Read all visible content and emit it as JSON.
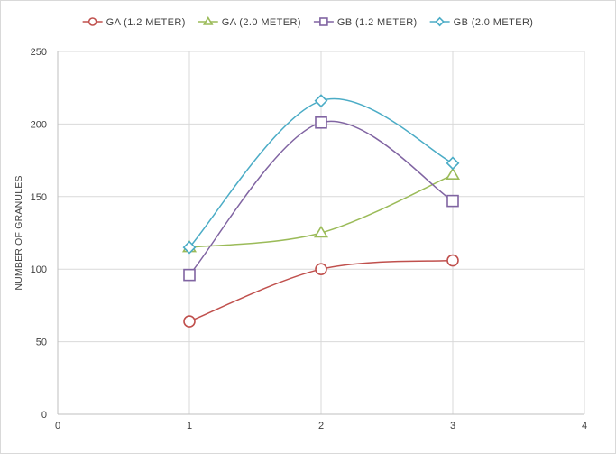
{
  "chart_data": {
    "type": "line",
    "title": "",
    "xlabel": "",
    "ylabel": "NUMBER OF GRANULES",
    "xlim": [
      0,
      4
    ],
    "ylim": [
      0,
      250
    ],
    "x_ticks": [
      0,
      1,
      2,
      3,
      4
    ],
    "y_ticks": [
      0,
      50,
      100,
      150,
      200,
      250
    ],
    "grid": true,
    "smooth": true,
    "legend": {
      "position": "top"
    },
    "x": [
      1,
      2,
      3
    ],
    "series": [
      {
        "name": "GA (1.2 METER)",
        "values": [
          64,
          100,
          106
        ],
        "color": "#c0504d",
        "marker": "circle"
      },
      {
        "name": "GA (2.0 METER)",
        "values": [
          115,
          125,
          165
        ],
        "color": "#9bbb59",
        "marker": "triangle"
      },
      {
        "name": "GB (1.2 METER)",
        "values": [
          96,
          201,
          147
        ],
        "color": "#8064a2",
        "marker": "square"
      },
      {
        "name": "GB (2.0 METER)",
        "values": [
          115,
          216,
          173
        ],
        "color": "#4bacc6",
        "marker": "diamond"
      }
    ]
  }
}
